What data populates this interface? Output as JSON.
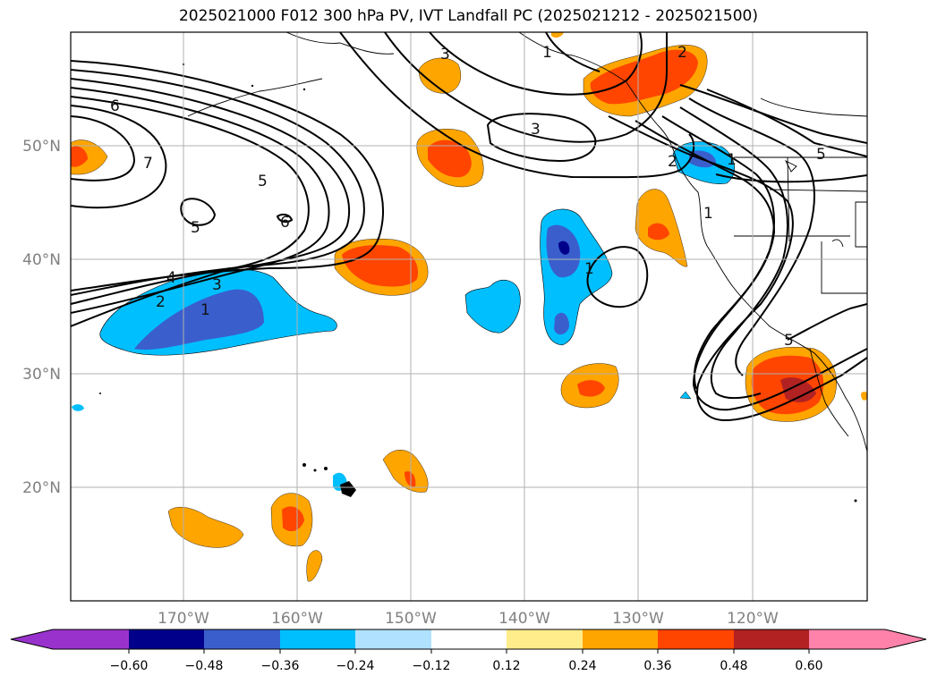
{
  "title": "2025021000 F012 300 hPa PV, IVT Landfall PC (2025021212 - 2025021500)",
  "axes": {
    "lon_labels": [
      "170°W",
      "160°W",
      "150°W",
      "140°W",
      "130°W",
      "120°W"
    ],
    "lat_labels": [
      "50°N",
      "40°N",
      "30°N",
      "20°N"
    ]
  },
  "contour_labels": [
    "6",
    "7",
    "5",
    "5",
    "6",
    "4",
    "3",
    "2",
    "1",
    "3",
    "3",
    "1",
    "2",
    "2",
    "1",
    "1",
    "1",
    "5",
    "5"
  ],
  "colorbar": {
    "tick_labels": [
      "−0.60",
      "−0.48",
      "−0.36",
      "−0.24",
      "−0.12",
      "0.12",
      "0.24",
      "0.36",
      "0.48",
      "0.60"
    ],
    "colors": [
      "#9932cc",
      "#00008b",
      "#3a5fcd",
      "#00bfff",
      "#b0e2ff",
      "#ffffff",
      "#ffec8b",
      "#ffa500",
      "#ff4500",
      "#b22222",
      "#ff82ab"
    ]
  }
}
